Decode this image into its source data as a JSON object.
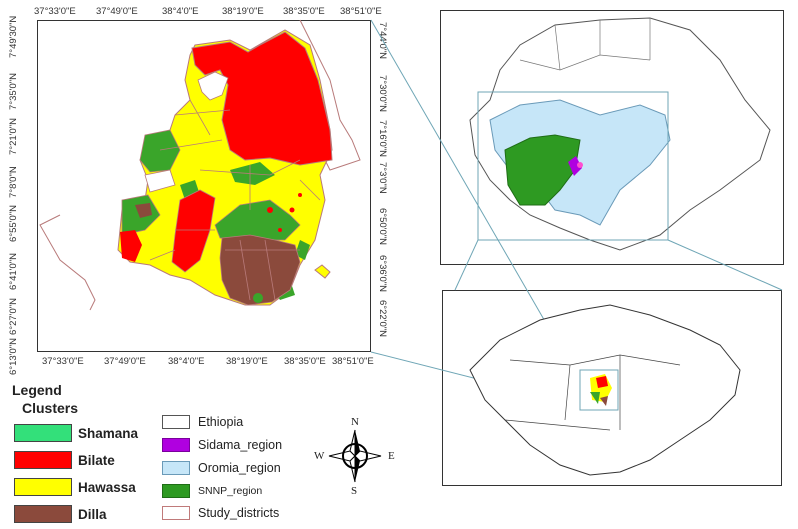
{
  "main_map": {
    "top_ticks": [
      "37°33'0\"E",
      "37°49'0\"E",
      "38°4'0\"E",
      "38°19'0\"E",
      "38°35'0\"E",
      "38°51'0\"E"
    ],
    "bottom_ticks": [
      "37°33'0\"E",
      "37°49'0\"E",
      "38°4'0\"E",
      "38°19'0\"E",
      "38°35'0\"E",
      "38°51'0\"E"
    ],
    "left_ticks": [
      "7°49'30\"N",
      "7°35'0\"N",
      "7°21'0\"N",
      "7°8'0\"N",
      "6°55'0\"N",
      "6°41'0\"N",
      "6°27'0\"N",
      "6°13'0\"N"
    ],
    "right_ticks": [
      "7°44'0\"N",
      "7°30'0\"N",
      "7°16'0\"N",
      "7°3'0\"N",
      "6°50'0\"N",
      "6°36'0\"N",
      "6°22'0\"N"
    ]
  },
  "legend": {
    "title": "Legend",
    "clusters_title": "Clusters",
    "clusters": [
      {
        "label": "Shamana",
        "color": "#33e07a"
      },
      {
        "label": "Bilate",
        "color": "#ff0000"
      },
      {
        "label": "Hawassa",
        "color": "#ffff00"
      },
      {
        "label": "Dilla",
        "color": "#8b4a3c"
      }
    ],
    "regions": [
      {
        "label": "Ethiopia",
        "color": "#ffffff",
        "border": "#555555"
      },
      {
        "label": "Sidama_region",
        "color": "#b000e0",
        "border": "#7a009c"
      },
      {
        "label": "Oromia_region",
        "color": "#c6e6f8",
        "border": "#6a9ab8"
      },
      {
        "label": "SNNP_region",
        "color": "#2e9a22",
        "border": "#1f6d16"
      },
      {
        "label": "Study_districts",
        "color": "#ffffff",
        "border": "#c07a7a"
      }
    ]
  },
  "compass": {
    "n": "N",
    "s": "S",
    "e": "E",
    "w": "W"
  },
  "colors": {
    "frame": "#333333",
    "connector": "#6fa6b6",
    "district_line": "#b87a7a"
  }
}
